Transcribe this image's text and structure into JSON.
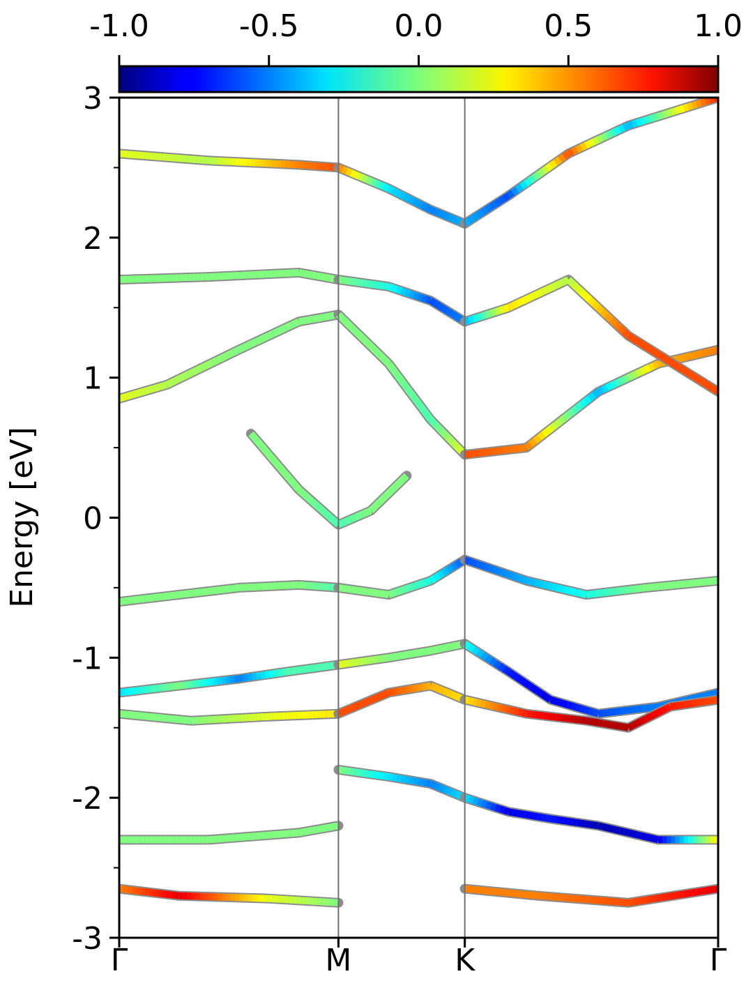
{
  "chart_data": {
    "type": "line",
    "title": "",
    "xlabel": "",
    "ylabel": "Energy [eV]",
    "ylim": [
      -3,
      3
    ],
    "yticks": [
      {
        "value": -3,
        "label": "-3"
      },
      {
        "value": -2,
        "label": "-2"
      },
      {
        "value": -1,
        "label": "-1"
      },
      {
        "value": 0,
        "label": "0"
      },
      {
        "value": 1,
        "label": "1"
      },
      {
        "value": 2,
        "label": "2"
      },
      {
        "value": 3,
        "label": "3"
      }
    ],
    "y_minor_ticks": [
      -2.5,
      -1.5,
      -0.5,
      0.5,
      1.5,
      2.5
    ],
    "k_path": [
      {
        "label": "Γ",
        "position": 0.0
      },
      {
        "label": "M",
        "position": 0.366
      },
      {
        "label": "K",
        "position": 0.577
      },
      {
        "label": "Γ",
        "position": 1.0
      }
    ],
    "colorbar": {
      "orientation": "horizontal",
      "location": "top",
      "colormap": "jet",
      "range": [
        -1.0,
        1.0
      ],
      "ticks": [
        {
          "value": -1.0,
          "label": "-1.0"
        },
        {
          "value": -0.5,
          "label": "-0.5"
        },
        {
          "value": 0.0,
          "label": "0.0"
        },
        {
          "value": 0.5,
          "label": "0.5"
        },
        {
          "value": 1.0,
          "label": "1.0"
        }
      ]
    },
    "grid": false,
    "band_outline_color": "#8c8c8c",
    "series": [
      {
        "x": [
          0,
          0.08,
          0.2,
          0.3,
          0.366
        ],
        "y": [
          0.85,
          0.95,
          1.2,
          1.4,
          1.45
        ],
        "color_value": [
          0.2,
          0.1,
          0.0,
          0.0,
          0.0
        ]
      },
      {
        "x": [
          0.366,
          0.45,
          0.52,
          0.577
        ],
        "y": [
          1.45,
          1.1,
          0.7,
          0.45
        ],
        "color_value": [
          0.0,
          0.0,
          -0.1,
          0.2
        ]
      },
      {
        "x": [
          0.577,
          0.68,
          0.8,
          0.9,
          1.0
        ],
        "y": [
          0.45,
          0.5,
          0.9,
          1.1,
          1.2
        ],
        "color_value": [
          0.6,
          0.5,
          -0.4,
          0.4,
          0.5
        ]
      },
      {
        "x": [
          0.22,
          0.3,
          0.366,
          0.42,
          0.48
        ],
        "y": [
          0.6,
          0.2,
          -0.05,
          0.05,
          0.3
        ],
        "color_value": [
          0.0,
          0.0,
          -0.1,
          0.0,
          0.0
        ]
      },
      {
        "x": [
          0.0,
          0.1,
          0.2,
          0.3,
          0.366
        ],
        "y": [
          -0.6,
          -0.55,
          -0.5,
          -0.48,
          -0.5
        ],
        "color_value": [
          0.0,
          0.0,
          0.0,
          0.0,
          -0.1
        ]
      },
      {
        "x": [
          0.366,
          0.45,
          0.52,
          0.577
        ],
        "y": [
          -0.5,
          -0.55,
          -0.45,
          -0.3
        ],
        "color_value": [
          0.0,
          0.0,
          -0.2,
          -0.6
        ]
      },
      {
        "x": [
          0.577,
          0.68,
          0.78,
          0.88,
          1.0
        ],
        "y": [
          -0.3,
          -0.45,
          -0.55,
          -0.5,
          -0.45
        ],
        "color_value": [
          -0.6,
          -0.4,
          -0.2,
          0.0,
          0.0
        ]
      },
      {
        "x": [
          0.0,
          0.1,
          0.2,
          0.28,
          0.366
        ],
        "y": [
          -1.25,
          -1.2,
          -1.15,
          -1.1,
          -1.05
        ],
        "color_value": [
          -0.3,
          0.0,
          -0.5,
          -0.1,
          -0.1
        ]
      },
      {
        "x": [
          0.366,
          0.45,
          0.52,
          0.577
        ],
        "y": [
          -1.05,
          -1.0,
          -0.95,
          -0.9
        ],
        "color_value": [
          0.2,
          0.0,
          0.0,
          0.0
        ]
      },
      {
        "x": [
          0.577,
          0.65,
          0.72,
          0.8,
          0.9,
          1.0
        ],
        "y": [
          -0.9,
          -1.1,
          -1.3,
          -1.4,
          -1.35,
          -1.25
        ],
        "color_value": [
          -0.2,
          -0.7,
          -0.8,
          -0.6,
          -0.5,
          -0.5
        ]
      },
      {
        "x": [
          0.0,
          0.12,
          0.25,
          0.366
        ],
        "y": [
          -1.4,
          -1.45,
          -1.42,
          -1.4
        ],
        "color_value": [
          0.0,
          0.0,
          0.2,
          0.3
        ]
      },
      {
        "x": [
          0.366,
          0.45,
          0.52,
          0.577
        ],
        "y": [
          -1.4,
          -1.25,
          -1.2,
          -1.3
        ],
        "color_value": [
          0.6,
          0.6,
          0.4,
          0.3
        ]
      },
      {
        "x": [
          0.577,
          0.68,
          0.78,
          0.85,
          0.92,
          1.0
        ],
        "y": [
          -1.3,
          -1.4,
          -1.45,
          -1.5,
          -1.35,
          -1.3
        ],
        "color_value": [
          0.3,
          0.7,
          0.9,
          0.9,
          0.7,
          0.6
        ]
      },
      {
        "x": [
          0.366,
          0.45,
          0.52,
          0.577
        ],
        "y": [
          -1.8,
          -1.85,
          -1.9,
          -2.0
        ],
        "color_value": [
          0.0,
          -0.3,
          -0.5,
          -0.3
        ]
      },
      {
        "x": [
          0.577,
          0.65,
          0.72,
          0.8,
          0.9,
          1.0
        ],
        "y": [
          -2.0,
          -2.1,
          -2.15,
          -2.2,
          -2.3,
          -2.3
        ],
        "color_value": [
          -0.3,
          -0.8,
          -0.7,
          -0.9,
          -0.8,
          0.3
        ]
      },
      {
        "x": [
          0.0,
          0.15,
          0.3,
          0.366
        ],
        "y": [
          -2.3,
          -2.3,
          -2.25,
          -2.2
        ],
        "color_value": [
          0.0,
          0.0,
          0.0,
          0.0
        ]
      },
      {
        "x": [
          0.0,
          0.1,
          0.25,
          0.366
        ],
        "y": [
          -2.65,
          -2.7,
          -2.72,
          -2.75
        ],
        "color_value": [
          0.5,
          0.8,
          0.2,
          0.0
        ]
      },
      {
        "x": [
          0.577,
          0.7,
          0.85,
          1.0
        ],
        "y": [
          -2.65,
          -2.7,
          -2.75,
          -2.65
        ],
        "color_value": [
          0.5,
          0.5,
          0.6,
          0.8
        ]
      },
      {
        "x": [
          0.0,
          0.15,
          0.3,
          0.366
        ],
        "y": [
          2.6,
          2.55,
          2.52,
          2.5
        ],
        "color_value": [
          0.2,
          0.1,
          0.5,
          0.6
        ]
      },
      {
        "x": [
          0.366,
          0.45,
          0.52,
          0.577
        ],
        "y": [
          2.5,
          2.35,
          2.2,
          2.1
        ],
        "color_value": [
          0.5,
          -0.3,
          -0.5,
          -0.4
        ]
      },
      {
        "x": [
          0.577,
          0.65,
          0.75,
          0.85,
          1.0
        ],
        "y": [
          2.1,
          2.3,
          2.6,
          2.8,
          3.0
        ],
        "color_value": [
          -0.4,
          -0.6,
          0.6,
          -0.4,
          0.7
        ]
      },
      {
        "x": [
          0.0,
          0.15,
          0.3,
          0.366
        ],
        "y": [
          1.7,
          1.72,
          1.75,
          1.7
        ],
        "color_value": [
          0.0,
          0.0,
          0.0,
          0.0
        ]
      },
      {
        "x": [
          0.366,
          0.45,
          0.52,
          0.577
        ],
        "y": [
          1.7,
          1.65,
          1.55,
          1.4
        ],
        "color_value": [
          0.0,
          -0.2,
          -0.6,
          -0.5
        ]
      },
      {
        "x": [
          0.577,
          0.65,
          0.75,
          0.85,
          1.0
        ],
        "y": [
          1.4,
          1.5,
          1.7,
          1.3,
          0.9
        ],
        "color_value": [
          -0.4,
          0.3,
          0.1,
          0.6,
          0.6
        ]
      }
    ]
  }
}
